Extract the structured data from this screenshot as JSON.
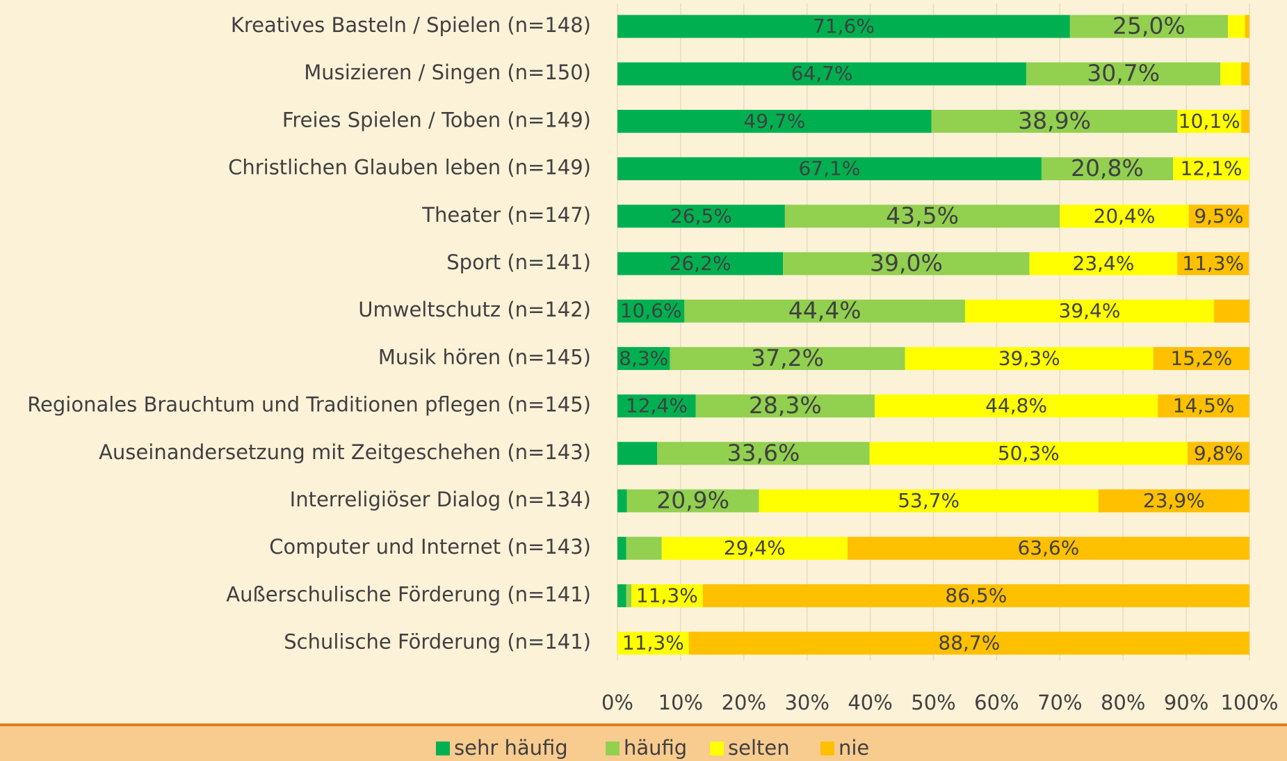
{
  "chart_data": {
    "type": "stacked_barh",
    "categories": [
      "Kreatives Basteln / Spielen (n=148)",
      "Musizieren / Singen (n=150)",
      "Freies Spielen / Toben (n=149)",
      "Christlichen Glauben leben (n=149)",
      "Theater (n=147)",
      "Sport (n=141)",
      "Umweltschutz (n=142)",
      "Musik hören (n=145)",
      "Regionales Brauchtum und Traditionen pflegen (n=145)",
      "Auseinandersetzung mit Zeitgeschehen (n=143)",
      "Interreligiöser Dialog (n=134)",
      "Computer und Internet (n=143)",
      "Außerschulische Förderung (n=141)",
      "Schulische Förderung (n=141)"
    ],
    "series": [
      {
        "name": "sehr häufig",
        "color": "#00b050",
        "values": [
          71.6,
          64.7,
          49.7,
          67.1,
          26.5,
          26.2,
          10.6,
          8.3,
          12.4,
          6.3,
          1.5,
          1.4,
          1.4,
          0
        ],
        "value_labels": [
          "71,6%",
          "64,7%",
          "49,7%",
          "67,1%",
          "26,5%",
          "26,2%",
          "10,6%",
          "8,3%",
          "12,4%",
          null,
          null,
          null,
          null,
          null
        ]
      },
      {
        "name": "häufig",
        "color": "#92d050",
        "values": [
          25.0,
          30.7,
          38.9,
          20.8,
          43.5,
          39.0,
          44.4,
          37.2,
          28.3,
          33.6,
          20.9,
          5.6,
          0.8,
          0
        ],
        "value_labels": [
          "25,0%",
          "30,7%",
          "38,9%",
          "20,8%",
          "43,5%",
          "39,0%",
          "44,4%",
          "37,2%",
          "28,3%",
          "33,6%",
          "20,9%",
          null,
          null,
          null
        ]
      },
      {
        "name": "selten",
        "color": "#ffff00",
        "values": [
          2.7,
          3.3,
          10.1,
          12.1,
          20.4,
          23.4,
          39.4,
          39.3,
          44.8,
          50.3,
          53.7,
          29.4,
          11.3,
          11.3
        ],
        "value_labels": [
          null,
          null,
          "10,1%",
          "12,1%",
          "20,4%",
          "23,4%",
          "39,4%",
          "39,3%",
          "44,8%",
          "50,3%",
          "53,7%",
          "29,4%",
          "11,3%",
          "11,3%"
        ]
      },
      {
        "name": "nie",
        "color": "#ffc000",
        "values": [
          0.7,
          1.3,
          1.3,
          0,
          9.5,
          11.3,
          5.6,
          15.2,
          14.5,
          9.8,
          23.9,
          63.6,
          86.5,
          88.7
        ],
        "value_labels": [
          null,
          null,
          null,
          null,
          "9,5%",
          "11,3%",
          null,
          "15,2%",
          "14,5%",
          "9,8%",
          "23,9%",
          "63,6%",
          "86,5%",
          "88,7%"
        ]
      }
    ],
    "xlim": [
      0,
      100
    ],
    "xticks": [
      {
        "value": 0,
        "label": "0%"
      },
      {
        "value": 10,
        "label": "10%"
      },
      {
        "value": 20,
        "label": "20%"
      },
      {
        "value": 30,
        "label": "30%"
      },
      {
        "value": 40,
        "label": "40%"
      },
      {
        "value": 50,
        "label": "50%"
      },
      {
        "value": 60,
        "label": "60%"
      },
      {
        "value": 70,
        "label": "70%"
      },
      {
        "value": 80,
        "label": "80%"
      },
      {
        "value": 90,
        "label": "90%"
      },
      {
        "value": 100,
        "label": "100%"
      }
    ],
    "grid": true,
    "legend": "bottom"
  }
}
